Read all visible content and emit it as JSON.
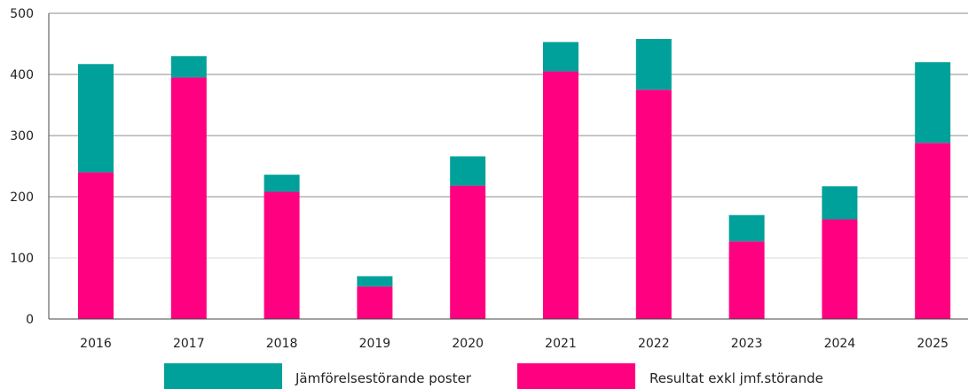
{
  "colors": {
    "series_top": "#00A19A",
    "series_bottom": "#FF0080",
    "axis": "#444444",
    "grid": "#8c8c8c",
    "grid_light": "#d9d9d9"
  },
  "chart_data": {
    "type": "bar",
    "stacked": true,
    "categories": [
      "2016",
      "2017",
      "2018",
      "2019",
      "2020",
      "2021",
      "2022",
      "2023",
      "2024",
      "2025"
    ],
    "series": [
      {
        "name": "Resultat exkl jmf.störande",
        "color": "#FF0080",
        "values": [
          240,
          395,
          208,
          53,
          218,
          405,
          375,
          127,
          163,
          288
        ]
      },
      {
        "name": "Jämförelsestörande poster",
        "color": "#00A19A",
        "values": [
          177,
          35,
          28,
          17,
          48,
          48,
          83,
          43,
          54,
          132
        ]
      }
    ],
    "ylim": [
      0,
      500
    ],
    "yticks": [
      "0",
      "100",
      "200",
      "300",
      "400",
      "500"
    ],
    "legend": {
      "position": "bottom",
      "items": [
        "Jämförelsestörande poster",
        "Resultat exkl jmf.störande"
      ]
    },
    "grid": true
  }
}
